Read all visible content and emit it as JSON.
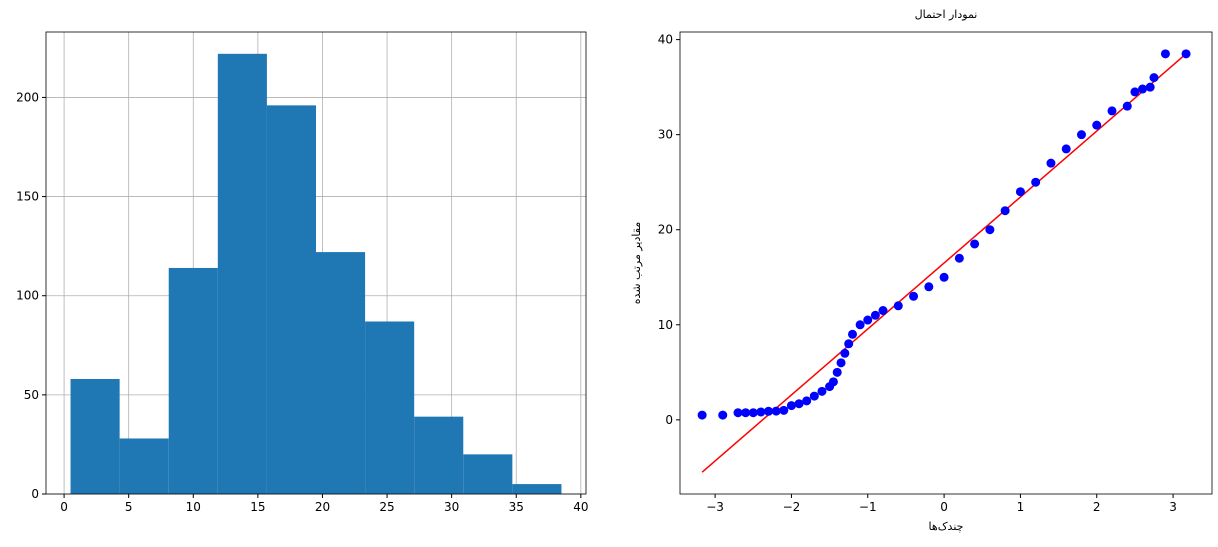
{
  "chart_data": [
    {
      "type": "histogram",
      "bins": [
        0.5,
        4.3,
        8.1,
        11.9,
        15.7,
        19.5,
        23.3,
        27.1,
        30.9,
        34.7,
        38.5
      ],
      "values": [
        58,
        28,
        114,
        222,
        196,
        122,
        87,
        39,
        20,
        5
      ],
      "color": "#1f77b4",
      "xlim": [
        -1.4,
        40.4
      ],
      "xticks": [
        0,
        5,
        10,
        15,
        20,
        25,
        30,
        35,
        40
      ],
      "ylim": [
        0,
        233
      ],
      "yticks": [
        0,
        50,
        100,
        150,
        200
      ],
      "grid": true
    },
    {
      "type": "scatter",
      "title": "نمودار احتمال",
      "x_label": "چندک‌ها",
      "y_label": "مقادیر مرتب شده",
      "color": "#0000ff",
      "x": [
        -3.17,
        -2.9,
        -2.7,
        -2.6,
        -2.5,
        -2.4,
        -2.3,
        -2.2,
        -2.1,
        -2.0,
        -1.9,
        -1.8,
        -1.7,
        -1.6,
        -1.5,
        -1.45,
        -1.4,
        -1.35,
        -1.3,
        -1.25,
        -1.2,
        -1.1,
        -1.0,
        -0.9,
        -0.8,
        -0.6,
        -0.4,
        -0.2,
        0,
        0.2,
        0.4,
        0.6,
        0.8,
        1.0,
        1.2,
        1.4,
        1.6,
        1.8,
        2.0,
        2.2,
        2.4,
        2.5,
        2.6,
        2.7,
        2.75,
        2.9,
        3.17
      ],
      "values": [
        0.5,
        0.5,
        0.75,
        0.75,
        0.75,
        0.83,
        0.9,
        0.92,
        1,
        1.5,
        1.7,
        2,
        2.5,
        3,
        3.5,
        4,
        5,
        6,
        7,
        8,
        9,
        10,
        10.5,
        11,
        11.5,
        12,
        13,
        14,
        15,
        17,
        18.5,
        20,
        22,
        24,
        25,
        27,
        28.5,
        30,
        31,
        32.5,
        33,
        34.5,
        34.8,
        35,
        36,
        38.5,
        38.5
      ],
      "fit_line": {
        "x": [
          -3.17,
          3.17
        ],
        "y": [
          -5.5,
          38.5
        ],
        "color": "#ff0000"
      },
      "xlim": [
        -3.46,
        3.51
      ],
      "xticks": [
        {
          "value": -3,
          "label": "−3"
        },
        {
          "value": -2,
          "label": "−2"
        },
        {
          "value": -1,
          "label": "−1"
        },
        0,
        1,
        2,
        3
      ],
      "ylim": [
        -7.8,
        40.8
      ],
      "yticks": [
        0,
        10,
        20,
        30,
        40
      ],
      "grid": false
    }
  ]
}
